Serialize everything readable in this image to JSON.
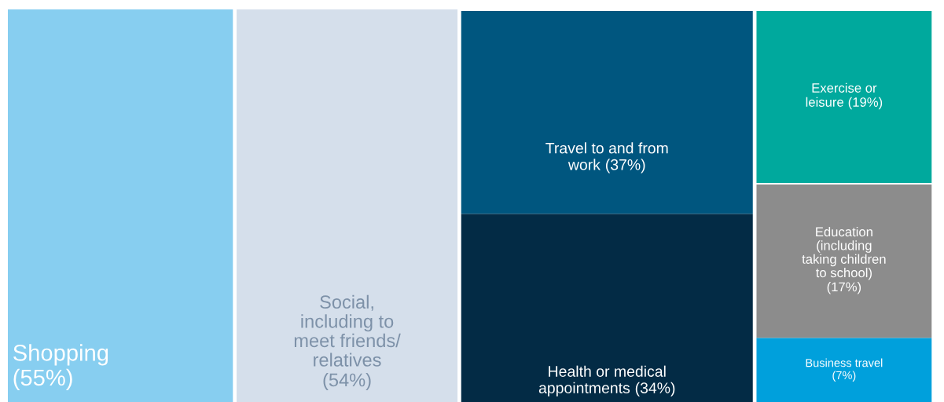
{
  "chart_data": {
    "type": "other",
    "categories": [
      "Shopping",
      "Social,\nincluding to\nmeet friends/\nrelatives",
      "Travel to and from\nwork",
      "Health or medical\nappointments",
      "Exercise or\nleisure",
      "Education\n(including\ntaking children\nto school)",
      "Business travel"
    ],
    "values": [
      55,
      54,
      37,
      34,
      19,
      17,
      7
    ],
    "value_labels": [
      "(55%)",
      "(54%)",
      "(37%)",
      "(34%)",
      "(19%)",
      "(17%)",
      "(7%)"
    ],
    "colors": [
      "#87cef0",
      "#d5dfeb",
      "#00567f",
      "#032b45",
      "#00a99d",
      "#8c8c8c",
      "#00a0dc"
    ]
  }
}
